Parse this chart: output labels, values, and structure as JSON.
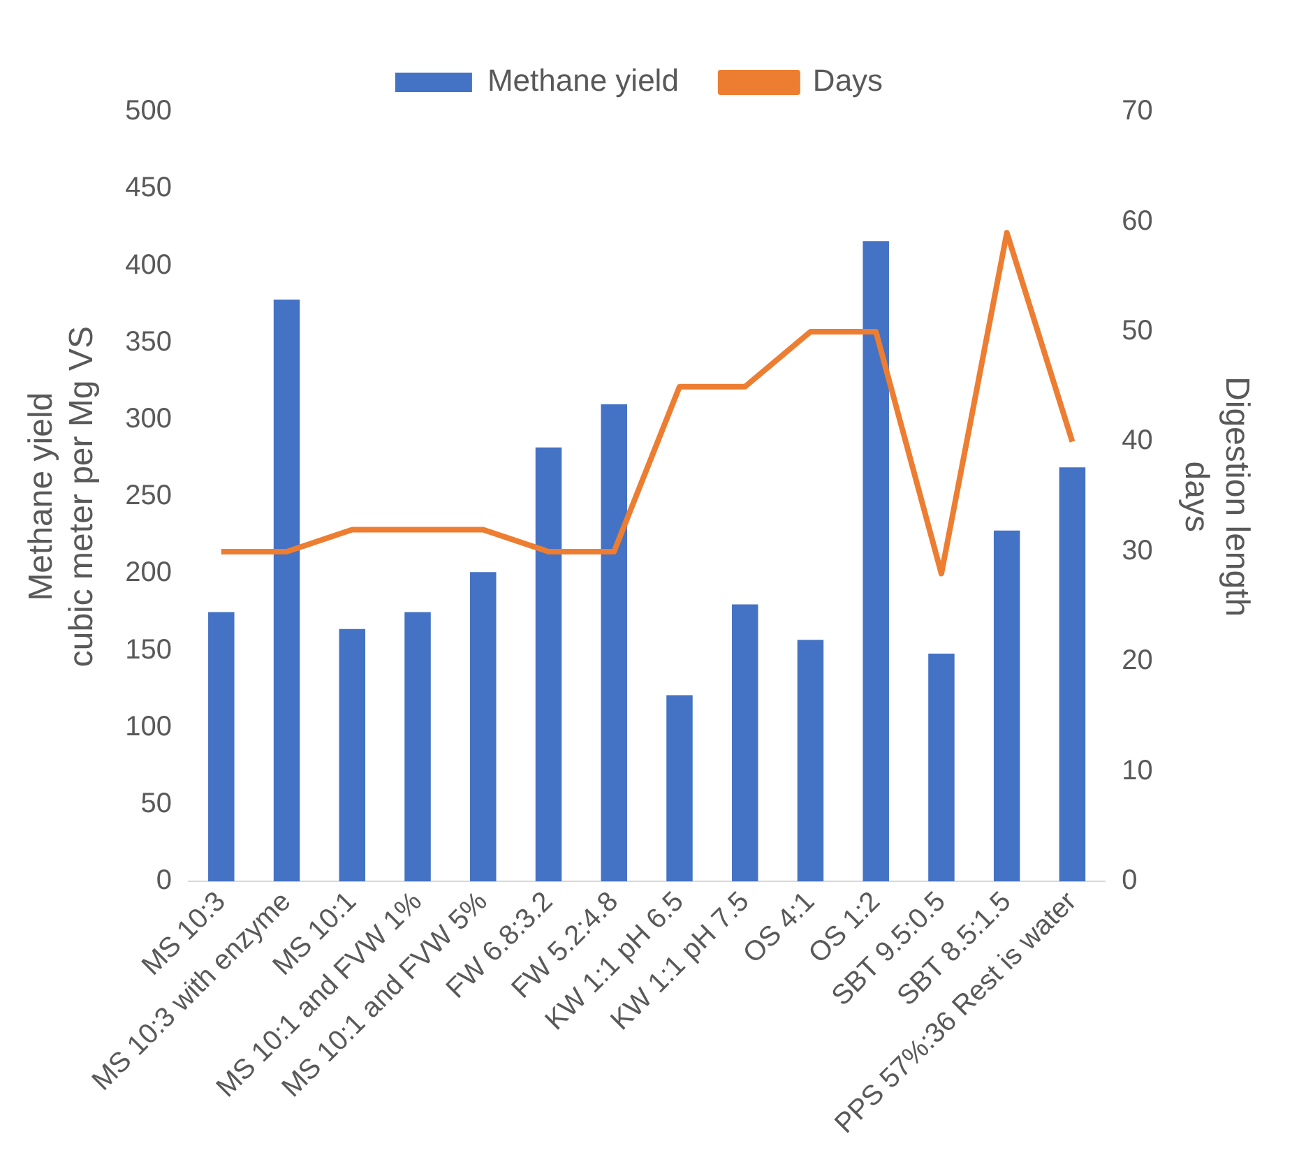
{
  "chart_data": {
    "type": "bar",
    "categories": [
      "MS 10:3",
      "MS 10:3 with enzyme",
      "MS 10:1",
      "MS 10:1 and FVW 1%",
      "MS 10:1 and FVW 5%",
      "FW 6.8:3.2",
      "FW 5.2:4.8",
      "KW 1:1 pH 6.5",
      "KW 1:1 pH 7.5",
      "OS 4:1",
      "OS 1:2",
      "SBT 9.5:0.5",
      "SBT 8.5:1.5",
      "PPS 57%:36 Rest is water"
    ],
    "series": [
      {
        "name": "Methane yield",
        "color": "#4472c4",
        "values": [
          175,
          378,
          164,
          175,
          201,
          282,
          310,
          121,
          180,
          157,
          416,
          148,
          228,
          269
        ]
      },
      {
        "name": "Days",
        "type": "line",
        "axis": "y2",
        "color": "#ed7d31",
        "values": [
          30,
          30,
          32,
          32,
          32,
          30,
          30,
          45,
          45,
          50,
          50,
          28,
          59,
          40
        ]
      }
    ],
    "ylabel": "Methane yield\ncubic meter per Mg VS",
    "y2label": "Digestion length\ndays",
    "ylim": [
      0,
      500
    ],
    "yticks": [
      0,
      50,
      100,
      150,
      200,
      250,
      300,
      350,
      400,
      450,
      500
    ],
    "y2lim": [
      0,
      70
    ],
    "y2ticks": [
      0,
      10,
      20,
      30,
      40,
      50,
      60,
      70
    ],
    "grid": false,
    "legend": "top",
    "marker": "none",
    "line_style": "solid"
  }
}
